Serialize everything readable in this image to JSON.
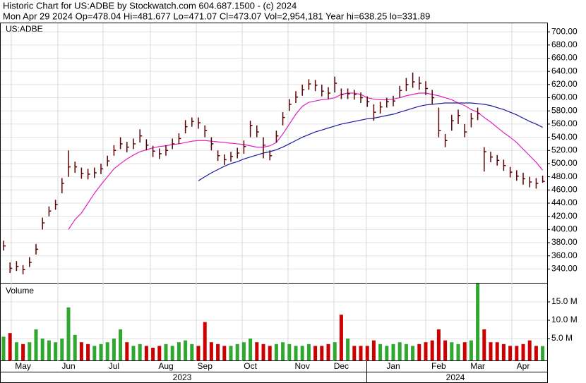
{
  "header": {
    "title": "Historic Chart for US:ADBE by Stockwatch.com 604.687.1500 - (c) 2024",
    "quote": "Mon Apr 29 2024  Op=478.04  Hi=481.677  Lo=471.07  Cl=473.07  Vol=2,954,181  Year hi=638.25  lo=331.89"
  },
  "chart_data": {
    "type": "hlc",
    "symbol": "US:ADBE",
    "volume_title": "Volume",
    "color": "#5a0000",
    "up_color": "#2ea82e",
    "down_color": "#cc0000",
    "grid": true,
    "years": [
      {
        "label": "2023"
      },
      {
        "label": "2024"
      }
    ],
    "categories": [
      null,
      null,
      null,
      "May",
      null,
      null,
      null,
      null,
      null,
      null,
      "Jun",
      null,
      null,
      null,
      null,
      null,
      null,
      "Jul",
      null,
      null,
      null,
      null,
      null,
      null,
      null,
      "Aug",
      null,
      null,
      null,
      null,
      null,
      "Sep",
      null,
      null,
      null,
      null,
      null,
      null,
      "Oct",
      null,
      null,
      null,
      null,
      null,
      null,
      null,
      "Nov",
      null,
      null,
      null,
      null,
      null,
      "Dec",
      null,
      null,
      null,
      null,
      null,
      null,
      null,
      "Jan",
      null,
      null,
      null,
      null,
      null,
      null,
      "Feb",
      null,
      null,
      null,
      null,
      null,
      "Mar",
      null,
      null,
      null,
      null,
      null,
      null,
      "Apr",
      null,
      null,
      null
    ],
    "high": [
      383,
      350,
      352,
      346,
      358,
      378,
      418,
      435,
      445,
      478,
      520,
      503,
      494,
      492,
      494,
      500,
      512,
      528,
      540,
      533,
      538,
      552,
      537,
      527,
      523,
      528,
      538,
      546,
      566,
      570,
      570,
      558,
      540,
      520,
      514,
      518,
      524,
      535,
      565,
      558,
      540,
      520,
      550,
      578,
      598,
      610,
      620,
      628,
      627,
      620,
      616,
      632,
      614,
      614,
      612,
      608,
      602,
      590,
      594,
      600,
      603,
      618,
      630,
      638.25,
      632,
      625,
      612,
      585,
      545,
      574,
      582,
      560,
      577,
      585,
      525,
      518,
      513,
      506,
      495,
      490,
      486,
      480,
      478,
      481.677
    ],
    "low": [
      368,
      334,
      337,
      332,
      343,
      362,
      400,
      420,
      430,
      455,
      480,
      486,
      477,
      476,
      478,
      484,
      496,
      512,
      522,
      517,
      522,
      532,
      520,
      510,
      507,
      512,
      522,
      530,
      546,
      556,
      553,
      540,
      520,
      504,
      498,
      503,
      508,
      515,
      540,
      540,
      508,
      505,
      532,
      558,
      580,
      592,
      603,
      612,
      610,
      602,
      598,
      608,
      598,
      598,
      597,
      592,
      586,
      565,
      576,
      585,
      587,
      600,
      610,
      615,
      612,
      604,
      590,
      540,
      525,
      550,
      560,
      540,
      555,
      566,
      488,
      502,
      497,
      489,
      479,
      474,
      468,
      464,
      462,
      471.07
    ],
    "close": [
      375,
      341,
      344,
      339,
      350,
      370,
      410,
      428,
      438,
      470,
      495,
      495,
      485,
      484,
      486,
      492,
      504,
      520,
      530,
      525,
      530,
      542,
      528,
      519,
      515,
      520,
      530,
      538,
      556,
      564,
      562,
      550,
      530,
      512,
      506,
      511,
      516,
      526,
      558,
      548,
      528,
      512,
      542,
      570,
      590,
      601,
      612,
      621,
      619,
      610,
      607,
      622,
      605,
      606,
      605,
      600,
      594,
      578,
      586,
      594,
      595,
      611,
      620,
      624,
      622,
      614,
      600,
      550,
      535,
      565,
      573,
      548,
      568,
      576,
      518,
      510,
      505,
      497,
      487,
      481,
      477,
      472,
      470,
      473.07
    ],
    "ma": [
      {
        "color": "#e020c0",
        "values": [
          null,
          null,
          null,
          null,
          null,
          null,
          null,
          null,
          null,
          null,
          400,
          415,
          425,
          440,
          455,
          468,
          480,
          492,
          500,
          507,
          513,
          518,
          521,
          524,
          526,
          527,
          529,
          530,
          532,
          534,
          535,
          535,
          534,
          533,
          532,
          531,
          530,
          529,
          527,
          525,
          525,
          527,
          532,
          545,
          560,
          575,
          587,
          593,
          595,
          597,
          598,
          600,
          605,
          607,
          607,
          605,
          600,
          598,
          597,
          597,
          598,
          600,
          603,
          605,
          607,
          607,
          605,
          603,
          600,
          597,
          592,
          588,
          582,
          578,
          570,
          563,
          555,
          547,
          540,
          532,
          522,
          512,
          502,
          490
        ]
      },
      {
        "color": "#1a1aa0",
        "values": [
          null,
          null,
          null,
          null,
          null,
          null,
          null,
          null,
          null,
          null,
          null,
          null,
          null,
          null,
          null,
          null,
          null,
          null,
          null,
          null,
          null,
          null,
          null,
          null,
          null,
          null,
          null,
          null,
          null,
          null,
          474,
          480,
          486,
          491,
          496,
          500,
          503,
          507,
          510,
          513,
          516,
          518,
          521,
          525,
          530,
          535,
          540,
          544,
          548,
          551,
          554,
          557,
          560,
          562,
          564,
          566,
          568,
          569,
          571,
          573,
          575,
          578,
          581,
          584,
          587,
          589,
          590,
          591,
          592,
          592,
          592,
          592,
          592,
          591,
          590,
          588,
          585,
          582,
          578,
          574,
          569,
          564,
          560,
          555
        ]
      }
    ],
    "ylim": [
      319,
      713
    ],
    "yticks": [
      {
        "value": 340,
        "label": "340.00"
      },
      {
        "value": 360,
        "label": "360.00"
      },
      {
        "value": 380,
        "label": "380.00"
      },
      {
        "value": 400,
        "label": "400.00"
      },
      {
        "value": 420,
        "label": "420.00"
      },
      {
        "value": 440,
        "label": "440.00"
      },
      {
        "value": 460,
        "label": "460.00"
      },
      {
        "value": 480,
        "label": "480.00"
      },
      {
        "value": 500,
        "label": "500.00"
      },
      {
        "value": 520,
        "label": "520.00"
      },
      {
        "value": 540,
        "label": "540.00"
      },
      {
        "value": 560,
        "label": "560.00"
      },
      {
        "value": 580,
        "label": "580.00"
      },
      {
        "value": 600,
        "label": "600.00"
      },
      {
        "value": 620,
        "label": "620.00"
      },
      {
        "value": 640,
        "label": "640.00"
      },
      {
        "value": 660,
        "label": "660.00"
      },
      {
        "value": 680,
        "label": "680.00"
      },
      {
        "value": 700,
        "label": "700.00"
      }
    ],
    "volume": [
      5.5,
      6.5,
      4,
      3.5,
      4,
      7.5,
      5,
      4.5,
      4,
      5,
      13.5,
      6,
      4,
      3.5,
      3,
      3.5,
      4,
      5,
      7.5,
      4,
      3,
      3.5,
      3,
      2.5,
      3,
      3.5,
      3,
      4,
      4.5,
      3.5,
      3,
      9.5,
      4,
      3.5,
      3,
      3,
      3.5,
      4,
      5,
      4,
      3.5,
      3,
      3.5,
      4,
      3.5,
      3,
      3,
      3.5,
      3,
      3,
      3.5,
      4,
      11.5,
      5,
      3,
      3,
      3,
      4.5,
      3.5,
      3,
      3.5,
      4,
      3.5,
      3,
      3.5,
      4,
      4.5,
      7.5,
      4.5,
      4,
      3.5,
      4,
      4.5,
      20,
      7.5,
      4,
      4,
      3.5,
      3,
      3,
      3.5,
      4.5,
      3,
      2.954181
    ],
    "vlim": [
      0,
      20
    ],
    "vticks": [
      {
        "value": 5,
        "label": "5.0 M"
      },
      {
        "value": 10,
        "label": "10.0 M"
      },
      {
        "value": 15,
        "label": "15.0 M"
      }
    ]
  }
}
